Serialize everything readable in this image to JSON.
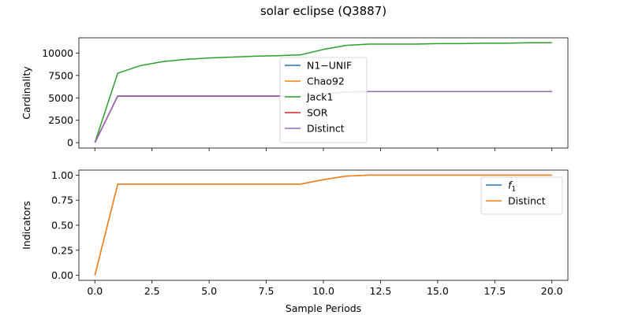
{
  "figure": {
    "title": "solar eclipse (Q3887)"
  },
  "chart_data": [
    {
      "type": "line",
      "xlabel": "",
      "ylabel": "Cardinality",
      "xlim": [
        -0.7,
        20.7
      ],
      "ylim": [
        -600,
        11700
      ],
      "xticks": [
        0,
        2.5,
        5,
        7.5,
        10,
        12.5,
        15,
        17.5,
        20
      ],
      "xtick_labels_visible": false,
      "yticks": [
        0,
        2500,
        5000,
        7500,
        10000
      ],
      "ytick_labels": [
        "0",
        "2500",
        "5000",
        "7500",
        "10000"
      ],
      "grid": false,
      "legend": {
        "placement": "center"
      },
      "series": [
        {
          "name": "N1−UNIF",
          "color": "#1f77b4",
          "x": [
            0,
            1,
            2,
            3,
            4,
            5,
            6,
            7,
            8,
            9,
            10,
            11,
            12,
            13,
            14,
            15,
            16,
            17,
            18,
            19,
            20
          ],
          "y": [
            0,
            5200,
            5200,
            5200,
            5200,
            5200,
            5200,
            5200,
            5200,
            5200,
            5450,
            5650,
            5700,
            5700,
            5700,
            5700,
            5700,
            5700,
            5700,
            5700,
            5700
          ]
        },
        {
          "name": "Chao92",
          "color": "#ff7f0e",
          "x": [
            0,
            1,
            2,
            3,
            4,
            5,
            6,
            7,
            8,
            9,
            10,
            11,
            12,
            13,
            14,
            15,
            16,
            17,
            18,
            19,
            20
          ],
          "y": [
            0,
            5200,
            5200,
            5200,
            5200,
            5200,
            5200,
            5200,
            5200,
            5200,
            5450,
            5650,
            5700,
            5700,
            5700,
            5700,
            5700,
            5700,
            5700,
            5700,
            5700
          ]
        },
        {
          "name": "Jack1",
          "color": "#2ca02c",
          "x": [
            0,
            1,
            2,
            3,
            4,
            5,
            6,
            7,
            8,
            9,
            10,
            11,
            12,
            13,
            14,
            15,
            16,
            17,
            18,
            19,
            20
          ],
          "y": [
            0,
            7750,
            8600,
            9050,
            9300,
            9450,
            9550,
            9650,
            9700,
            9800,
            10400,
            10850,
            11000,
            11000,
            11000,
            11050,
            11050,
            11100,
            11100,
            11150,
            11150
          ]
        },
        {
          "name": "SOR",
          "color": "#d62728",
          "x": [
            0,
            1,
            2,
            3,
            4,
            5,
            6,
            7,
            8,
            9,
            10,
            11,
            12,
            13,
            14,
            15,
            16,
            17,
            18,
            19,
            20
          ],
          "y": [
            0,
            5200,
            5200,
            5200,
            5200,
            5200,
            5200,
            5200,
            5200,
            5200,
            5450,
            5650,
            5700,
            5700,
            5700,
            5700,
            5700,
            5700,
            5700,
            5700,
            5700
          ]
        },
        {
          "name": "Distinct",
          "color": "#9467bd",
          "x": [
            0,
            1,
            2,
            3,
            4,
            5,
            6,
            7,
            8,
            9,
            10,
            11,
            12,
            13,
            14,
            15,
            16,
            17,
            18,
            19,
            20
          ],
          "y": [
            0,
            5200,
            5200,
            5200,
            5200,
            5200,
            5200,
            5200,
            5200,
            5200,
            5450,
            5650,
            5700,
            5700,
            5700,
            5700,
            5700,
            5700,
            5700,
            5700,
            5700
          ]
        }
      ]
    },
    {
      "type": "line",
      "xlabel": "Sample Periods",
      "ylabel": "Indicators",
      "xlim": [
        -0.7,
        20.7
      ],
      "ylim": [
        -0.05,
        1.05
      ],
      "xticks": [
        0,
        2.5,
        5,
        7.5,
        10,
        12.5,
        15,
        17.5,
        20
      ],
      "xtick_labels": [
        "0.0",
        "2.5",
        "5.0",
        "7.5",
        "10.0",
        "12.5",
        "15.0",
        "17.5",
        "20.0"
      ],
      "yticks": [
        0,
        0.25,
        0.5,
        0.75,
        1.0
      ],
      "ytick_labels": [
        "0.00",
        "0.25",
        "0.50",
        "0.75",
        "1.00"
      ],
      "grid": false,
      "legend": {
        "placement": "upper right"
      },
      "series": [
        {
          "name": "f",
          "name_subscript": "1",
          "color": "#1f77b4",
          "x": [
            0,
            1,
            2,
            3,
            4,
            5,
            6,
            7,
            8,
            9,
            10,
            11,
            12,
            13,
            14,
            15,
            16,
            17,
            18,
            19,
            20
          ],
          "y": [
            0,
            0.91,
            0.91,
            0.91,
            0.91,
            0.91,
            0.91,
            0.91,
            0.91,
            0.91,
            0.955,
            0.99,
            1.0,
            1.0,
            1.0,
            1.0,
            1.0,
            1.0,
            1.0,
            1.0,
            1.0
          ]
        },
        {
          "name": "Distinct",
          "color": "#ff7f0e",
          "x": [
            0,
            1,
            2,
            3,
            4,
            5,
            6,
            7,
            8,
            9,
            10,
            11,
            12,
            13,
            14,
            15,
            16,
            17,
            18,
            19,
            20
          ],
          "y": [
            0,
            0.91,
            0.91,
            0.91,
            0.91,
            0.91,
            0.91,
            0.91,
            0.91,
            0.91,
            0.955,
            0.99,
            1.0,
            1.0,
            1.0,
            1.0,
            1.0,
            1.0,
            1.0,
            1.0,
            1.0
          ]
        }
      ]
    }
  ]
}
